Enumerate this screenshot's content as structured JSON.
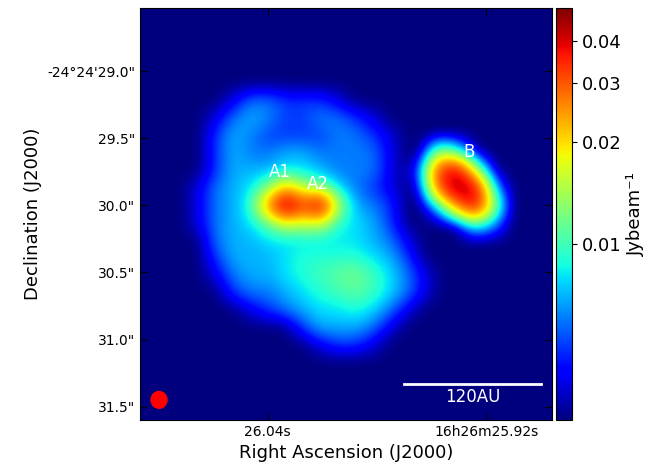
{
  "chart_data": {
    "type": "heatmap",
    "x_label": "Right Ascension (J2000)",
    "y_label": "Declination (J2000)",
    "xlim": [
      26.11,
      25.884
    ],
    "ylim": [
      31.6,
      28.53
    ],
    "xticks": [
      {
        "value": 26.04,
        "label": "26.04s"
      },
      {
        "value": 25.92,
        "label": "16h26m25.92s"
      }
    ],
    "yticks": [
      {
        "value": 29.0,
        "label": "-24°24'29.0\""
      },
      {
        "value": 29.5,
        "label": "29.5\""
      },
      {
        "value": 30.0,
        "label": "30.0\""
      },
      {
        "value": 30.5,
        "label": "30.5\""
      },
      {
        "value": 31.0,
        "label": "31.0\""
      },
      {
        "value": 31.5,
        "label": "31.5\""
      }
    ],
    "color": "jet",
    "colorbar": {
      "label": "Jybeam⁻¹",
      "range": [
        0.003,
        0.05
      ],
      "ticks": [
        0.01,
        0.02,
        0.03,
        0.04
      ],
      "log": true
    },
    "annotations": [
      {
        "text": "A1",
        "x": 26.0334,
        "y": 29.752
      },
      {
        "text": "A2",
        "x": 26.0126,
        "y": 29.841
      },
      {
        "text": "B",
        "x": 25.9293,
        "y": 29.603
      }
    ],
    "scale_bar": {
      "text": "120AU",
      "x": [
        25.965,
        25.89
      ],
      "y": 31.33
    },
    "beam": {
      "x": 26.0997,
      "y": 31.45,
      "width": 0.0088,
      "height": 0.125,
      "color": "red"
    },
    "cells": [
      [
        0.003,
        0.003,
        0.003,
        0.003,
        0.003,
        0.003,
        0.003,
        0.003,
        0.003,
        0.003,
        0.003,
        0.003,
        0.003,
        0.003,
        0.003,
        0.003,
        0.003,
        0.003,
        0.003,
        0.003,
        0.003,
        0.003,
        0.003,
        0.003
      ],
      [
        0.003,
        0.003,
        0.003,
        0.003,
        0.003,
        0.003,
        0.003,
        0.003,
        0.003,
        0.003,
        0.003,
        0.003,
        0.003,
        0.003,
        0.003,
        0.003,
        0.003,
        0.003,
        0.003,
        0.003,
        0.003,
        0.003,
        0.003,
        0.003
      ],
      [
        0.003,
        0.003,
        0.003,
        0.003,
        0.003,
        0.003,
        0.003,
        0.003,
        0.003,
        0.003,
        0.003,
        0.003,
        0.003,
        0.003,
        0.003,
        0.003,
        0.003,
        0.003,
        0.003,
        0.003,
        0.003,
        0.003,
        0.003,
        0.003
      ],
      [
        0.003,
        0.003,
        0.003,
        0.003,
        0.003,
        0.003,
        0.003,
        0.003,
        0.003,
        0.003,
        0.003,
        0.003,
        0.003,
        0.003,
        0.003,
        0.003,
        0.003,
        0.003,
        0.003,
        0.003,
        0.003,
        0.003,
        0.003,
        0.003
      ],
      [
        0.003,
        0.003,
        0.003,
        0.003,
        0.003,
        0.003,
        0.003,
        0.003,
        0.003,
        0.003,
        0.003,
        0.003,
        0.003,
        0.003,
        0.003,
        0.003,
        0.003,
        0.003,
        0.003,
        0.003,
        0.003,
        0.003,
        0.003,
        0.003
      ],
      [
        0.003,
        0.003,
        0.003,
        0.003,
        0.003,
        0.004,
        0.006,
        0.006,
        0.005,
        0.005,
        0.005,
        0.004,
        0.003,
        0.003,
        0.003,
        0.003,
        0.003,
        0.003,
        0.003,
        0.003,
        0.003,
        0.003,
        0.003,
        0.003
      ],
      [
        0.003,
        0.003,
        0.003,
        0.003,
        0.004,
        0.006,
        0.007,
        0.006,
        0.005,
        0.005,
        0.006,
        0.006,
        0.005,
        0.004,
        0.003,
        0.003,
        0.003,
        0.003,
        0.003,
        0.003,
        0.003,
        0.003,
        0.003,
        0.003
      ],
      [
        0.003,
        0.003,
        0.003,
        0.003,
        0.005,
        0.007,
        0.006,
        0.005,
        0.005,
        0.005,
        0.005,
        0.006,
        0.006,
        0.005,
        0.004,
        0.003,
        0.003,
        0.003,
        0.003,
        0.003,
        0.003,
        0.003,
        0.003,
        0.003
      ],
      [
        0.003,
        0.003,
        0.003,
        0.003,
        0.005,
        0.007,
        0.006,
        0.006,
        0.007,
        0.007,
        0.006,
        0.006,
        0.006,
        0.006,
        0.004,
        0.003,
        0.003,
        0.015,
        0.01,
        0.003,
        0.003,
        0.003,
        0.003,
        0.003
      ],
      [
        0.003,
        0.003,
        0.003,
        0.003,
        0.005,
        0.007,
        0.007,
        0.007,
        0.008,
        0.008,
        0.007,
        0.006,
        0.006,
        0.006,
        0.004,
        0.003,
        0.006,
        0.035,
        0.04,
        0.015,
        0.003,
        0.003,
        0.003,
        0.003
      ],
      [
        0.003,
        0.003,
        0.003,
        0.004,
        0.006,
        0.007,
        0.008,
        0.012,
        0.022,
        0.014,
        0.012,
        0.008,
        0.006,
        0.005,
        0.004,
        0.003,
        0.004,
        0.03,
        0.047,
        0.04,
        0.008,
        0.003,
        0.003,
        0.003
      ],
      [
        0.003,
        0.003,
        0.003,
        0.004,
        0.006,
        0.007,
        0.009,
        0.025,
        0.046,
        0.032,
        0.042,
        0.014,
        0.007,
        0.006,
        0.005,
        0.003,
        0.003,
        0.008,
        0.025,
        0.04,
        0.015,
        0.003,
        0.003,
        0.003
      ],
      [
        0.003,
        0.003,
        0.003,
        0.004,
        0.006,
        0.007,
        0.008,
        0.011,
        0.016,
        0.015,
        0.016,
        0.009,
        0.008,
        0.007,
        0.005,
        0.003,
        0.003,
        0.003,
        0.003,
        0.01,
        0.007,
        0.003,
        0.003,
        0.003
      ],
      [
        0.003,
        0.003,
        0.003,
        0.003,
        0.006,
        0.007,
        0.007,
        0.008,
        0.008,
        0.008,
        0.008,
        0.008,
        0.008,
        0.007,
        0.006,
        0.004,
        0.003,
        0.003,
        0.003,
        0.003,
        0.003,
        0.003,
        0.003,
        0.003
      ],
      [
        0.003,
        0.003,
        0.003,
        0.003,
        0.005,
        0.007,
        0.007,
        0.007,
        0.008,
        0.009,
        0.009,
        0.009,
        0.009,
        0.008,
        0.007,
        0.005,
        0.003,
        0.003,
        0.003,
        0.003,
        0.003,
        0.003,
        0.003,
        0.003
      ],
      [
        0.003,
        0.003,
        0.003,
        0.003,
        0.004,
        0.006,
        0.007,
        0.007,
        0.008,
        0.009,
        0.01,
        0.011,
        0.012,
        0.01,
        0.008,
        0.006,
        0.004,
        0.003,
        0.003,
        0.003,
        0.003,
        0.003,
        0.003,
        0.003
      ],
      [
        0.003,
        0.003,
        0.003,
        0.003,
        0.003,
        0.005,
        0.006,
        0.006,
        0.007,
        0.008,
        0.009,
        0.01,
        0.011,
        0.01,
        0.008,
        0.006,
        0.004,
        0.003,
        0.003,
        0.003,
        0.003,
        0.003,
        0.003,
        0.003
      ],
      [
        0.003,
        0.003,
        0.003,
        0.003,
        0.003,
        0.003,
        0.004,
        0.005,
        0.006,
        0.007,
        0.008,
        0.008,
        0.009,
        0.008,
        0.006,
        0.004,
        0.003,
        0.003,
        0.003,
        0.003,
        0.003,
        0.003,
        0.003,
        0.003
      ],
      [
        0.003,
        0.003,
        0.003,
        0.003,
        0.003,
        0.003,
        0.003,
        0.003,
        0.003,
        0.005,
        0.007,
        0.007,
        0.007,
        0.006,
        0.004,
        0.003,
        0.003,
        0.003,
        0.003,
        0.003,
        0.003,
        0.003,
        0.003,
        0.003
      ],
      [
        0.003,
        0.003,
        0.003,
        0.003,
        0.003,
        0.003,
        0.003,
        0.003,
        0.003,
        0.003,
        0.004,
        0.005,
        0.005,
        0.004,
        0.003,
        0.003,
        0.003,
        0.003,
        0.003,
        0.003,
        0.003,
        0.003,
        0.003,
        0.003
      ],
      [
        0.003,
        0.003,
        0.003,
        0.003,
        0.003,
        0.003,
        0.003,
        0.003,
        0.003,
        0.003,
        0.003,
        0.003,
        0.003,
        0.003,
        0.003,
        0.003,
        0.003,
        0.003,
        0.003,
        0.003,
        0.003,
        0.003,
        0.003,
        0.003
      ],
      [
        0.003,
        0.003,
        0.003,
        0.003,
        0.003,
        0.003,
        0.003,
        0.003,
        0.003,
        0.003,
        0.003,
        0.003,
        0.003,
        0.003,
        0.003,
        0.003,
        0.003,
        0.003,
        0.003,
        0.003,
        0.003,
        0.003,
        0.003,
        0.003
      ],
      [
        0.003,
        0.003,
        0.003,
        0.003,
        0.003,
        0.003,
        0.003,
        0.003,
        0.003,
        0.003,
        0.003,
        0.003,
        0.003,
        0.003,
        0.003,
        0.003,
        0.003,
        0.003,
        0.003,
        0.003,
        0.003,
        0.003,
        0.003,
        0.003
      ],
      [
        0.003,
        0.003,
        0.003,
        0.003,
        0.003,
        0.003,
        0.003,
        0.003,
        0.003,
        0.003,
        0.003,
        0.003,
        0.003,
        0.003,
        0.003,
        0.003,
        0.003,
        0.003,
        0.003,
        0.003,
        0.003,
        0.003,
        0.003,
        0.003
      ]
    ]
  }
}
